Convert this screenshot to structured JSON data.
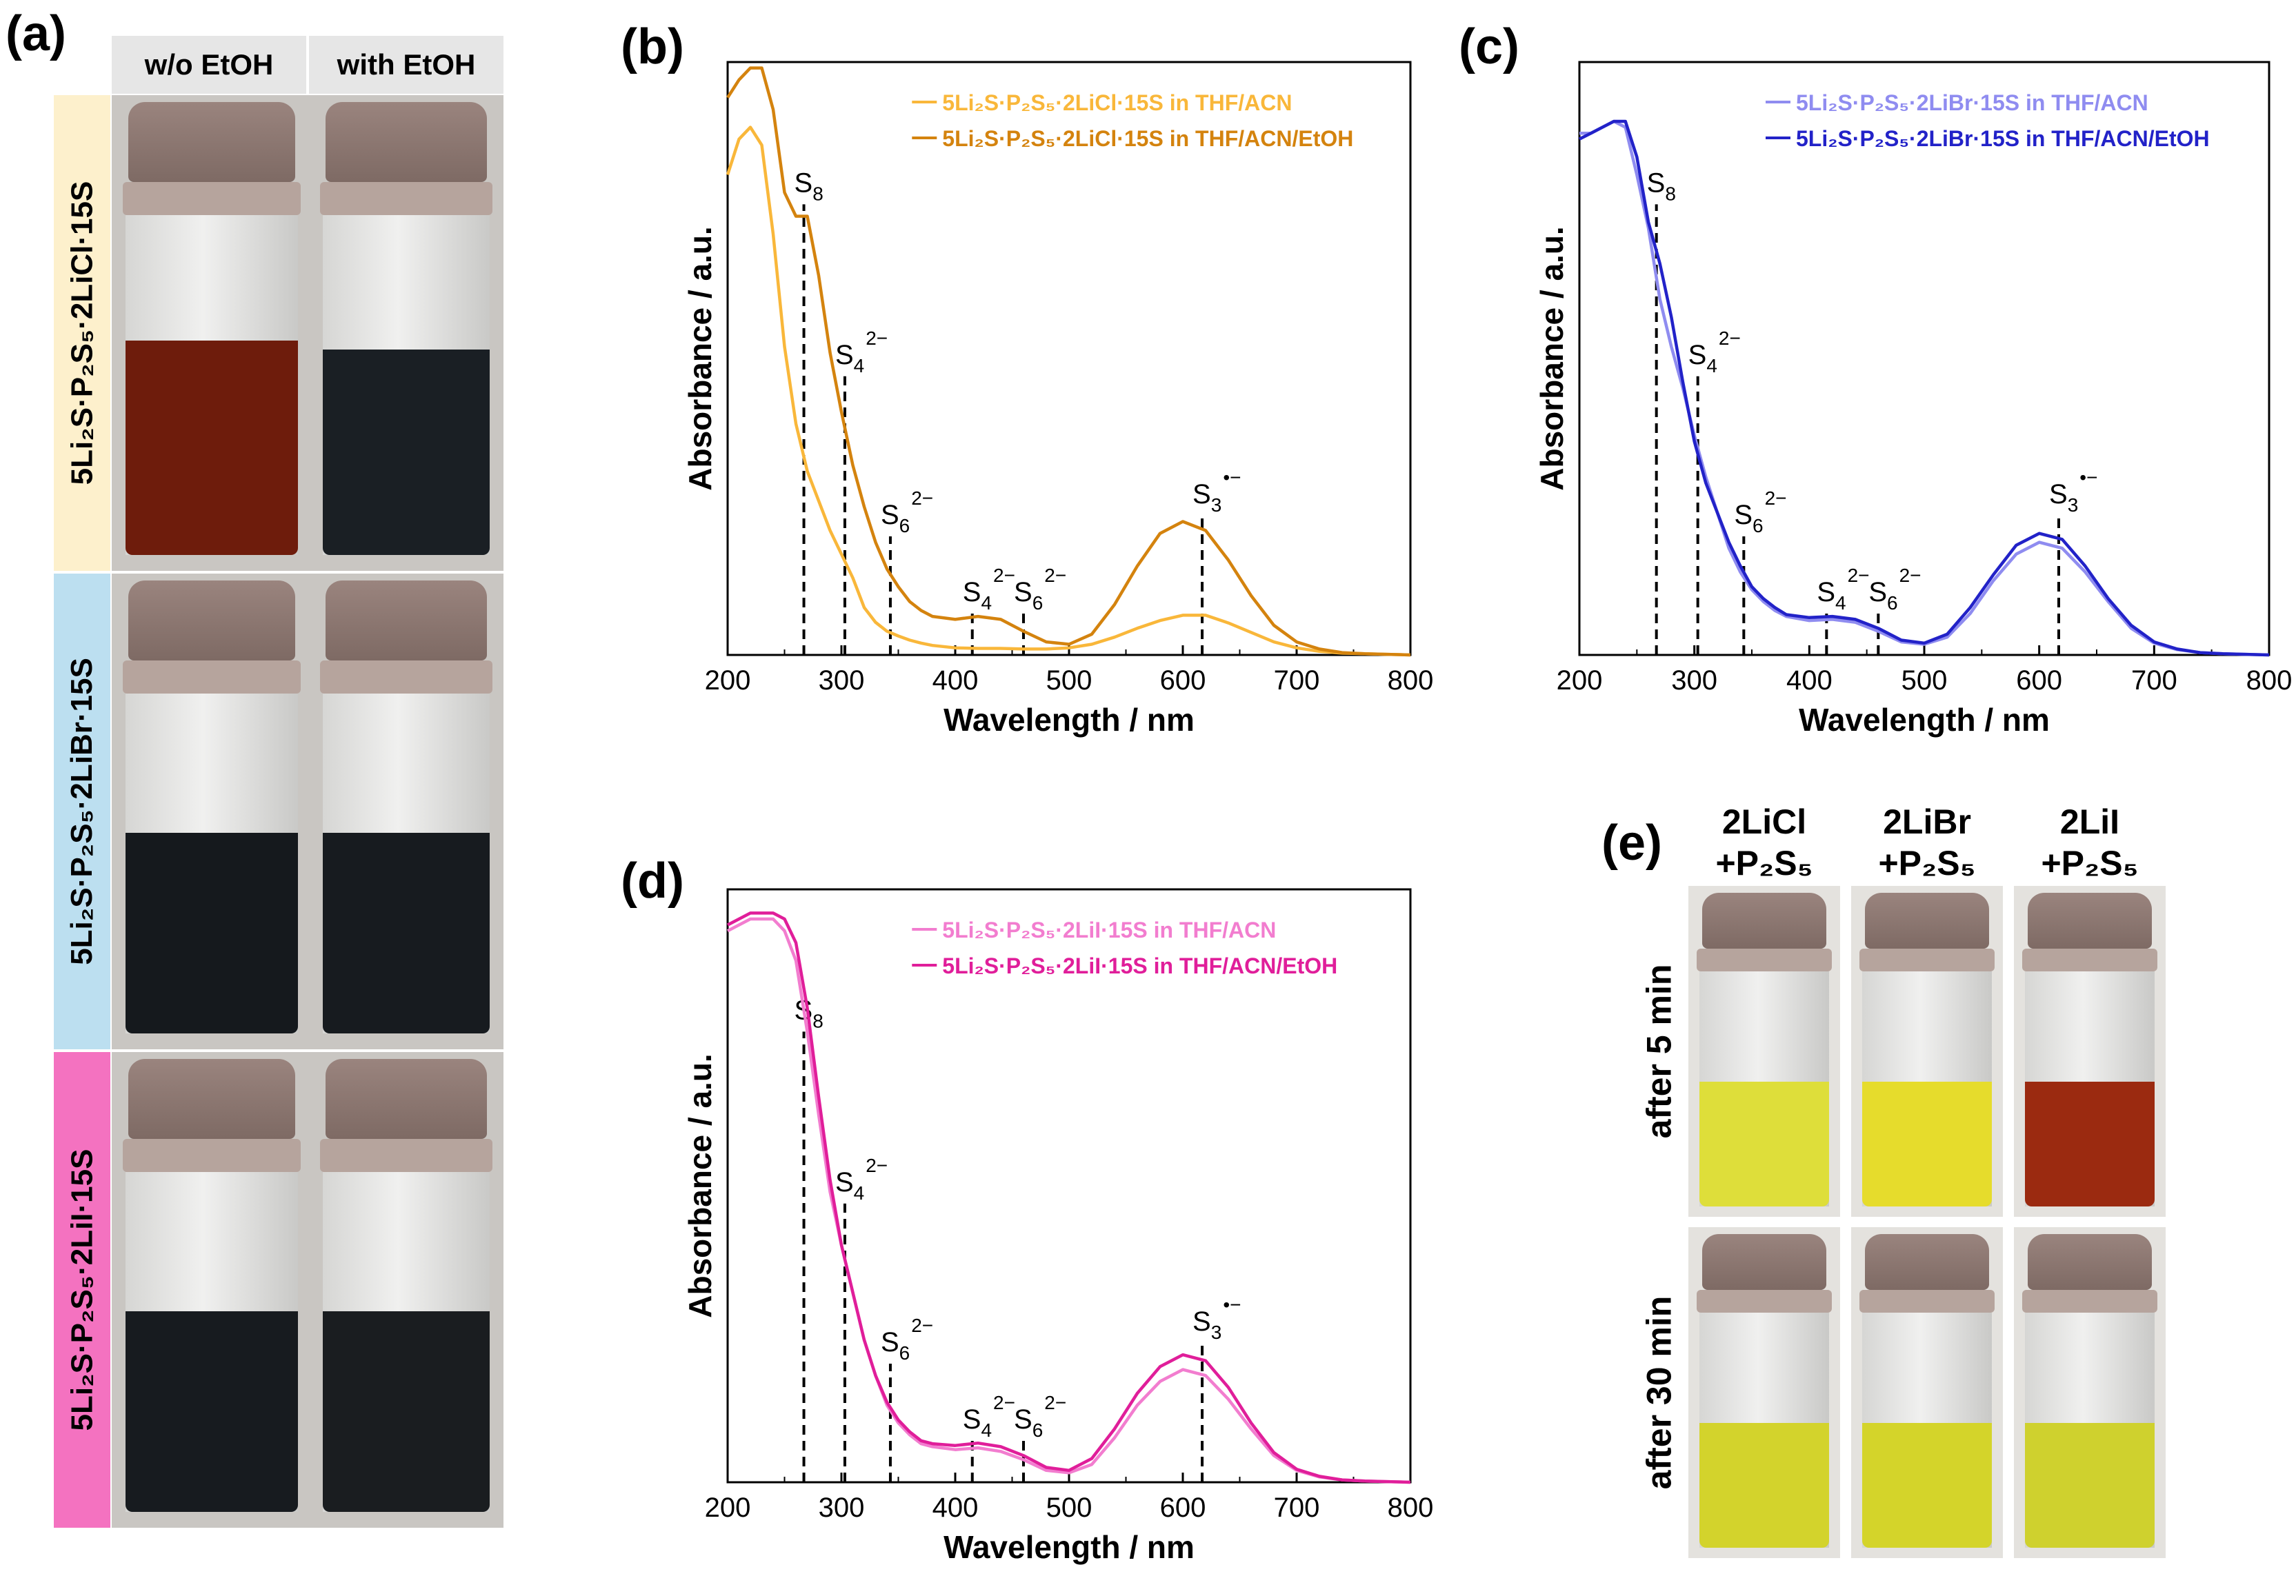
{
  "panel_a": {
    "letter": "(a)",
    "col_headers": [
      "w/o EtOH",
      "with EtOH"
    ],
    "row_labels": [
      "5Li₂S·P₂S₅·2LiCl·15S",
      "5Li₂S·P₂S₅·2LiBr·15S",
      "5Li₂S·P₂S₅·2LiI·15S"
    ],
    "row_colors": [
      "#fdf0cc",
      "#bcdff0",
      "#f472c0"
    ],
    "liquid_colors": [
      [
        "#6e1c0c",
        "#1a1f24"
      ],
      [
        "#15191d",
        "#171b1f"
      ],
      [
        "#171b1f",
        "#1a1d20"
      ]
    ]
  },
  "panel_e": {
    "letter": "(e)",
    "col_headers": [
      [
        "2LiCl",
        "+P₂S₅"
      ],
      [
        "2LiBr",
        "+P₂S₅"
      ],
      [
        "2LiI",
        "+P₂S₅"
      ]
    ],
    "row_labels": [
      "after 5 min",
      "after 30 min"
    ],
    "liquid_colors": [
      [
        "#dede3a",
        "#e6dc2c",
        "#9b2a10"
      ],
      [
        "#d3d32c",
        "#d4d42a",
        "#cfd12e"
      ]
    ]
  },
  "chart_data": [
    {
      "panel": "(b)",
      "type": "line",
      "xlabel": "Wavelength / nm",
      "ylabel": "Absorbance / a.u.",
      "xlim": [
        200,
        800
      ],
      "ylim": [
        0,
        1
      ],
      "xticks": [
        200,
        300,
        400,
        500,
        600,
        700,
        800
      ],
      "legend_position": "top-right",
      "series": [
        {
          "name": "5Li₂S·P₂S₅·2LiCl·15S in THF/ACN",
          "color": "#f9b73a",
          "x": [
            200,
            210,
            220,
            230,
            240,
            250,
            260,
            270,
            280,
            290,
            300,
            310,
            320,
            330,
            340,
            350,
            360,
            370,
            380,
            400,
            420,
            440,
            460,
            480,
            500,
            520,
            540,
            560,
            580,
            600,
            620,
            640,
            660,
            680,
            700,
            720,
            740,
            760,
            780,
            800
          ],
          "y": [
            0.81,
            0.87,
            0.89,
            0.86,
            0.71,
            0.52,
            0.39,
            0.31,
            0.26,
            0.21,
            0.17,
            0.13,
            0.08,
            0.055,
            0.04,
            0.032,
            0.025,
            0.02,
            0.016,
            0.012,
            0.011,
            0.011,
            0.01,
            0.01,
            0.012,
            0.018,
            0.03,
            0.045,
            0.058,
            0.067,
            0.067,
            0.054,
            0.038,
            0.022,
            0.012,
            0.006,
            0.003,
            0.002,
            0.001,
            0
          ]
        },
        {
          "name": "5Li₂S·P₂S₅·2LiCl·15S in THF/ACN/EtOH",
          "color": "#d4830e",
          "x": [
            200,
            210,
            220,
            230,
            240,
            250,
            260,
            270,
            280,
            290,
            300,
            310,
            320,
            330,
            340,
            350,
            360,
            370,
            380,
            400,
            420,
            440,
            460,
            480,
            500,
            520,
            540,
            560,
            580,
            600,
            620,
            640,
            660,
            680,
            700,
            720,
            740,
            760,
            780,
            800
          ],
          "y": [
            0.94,
            0.97,
            0.99,
            0.99,
            0.92,
            0.78,
            0.74,
            0.74,
            0.64,
            0.51,
            0.41,
            0.32,
            0.25,
            0.19,
            0.145,
            0.115,
            0.09,
            0.075,
            0.065,
            0.06,
            0.065,
            0.06,
            0.04,
            0.022,
            0.018,
            0.035,
            0.085,
            0.15,
            0.205,
            0.225,
            0.21,
            0.16,
            0.1,
            0.05,
            0.022,
            0.01,
            0.004,
            0.002,
            0.001,
            0
          ]
        }
      ],
      "markers": [
        {
          "x": 267,
          "label": "S8",
          "sup": "",
          "top": 0.76
        },
        {
          "x": 303,
          "label": "S4",
          "sup": "2−",
          "top": 0.47
        },
        {
          "x": 343,
          "label": "S6",
          "sup": "2−",
          "top": 0.2
        },
        {
          "x": 415,
          "label": "S4",
          "sup": "2−",
          "top": 0.07
        },
        {
          "x": 460,
          "label": "S6",
          "sup": "2−",
          "top": 0.07
        },
        {
          "x": 617,
          "label": "S3",
          "sup": "•−",
          "top": 0.235
        }
      ]
    },
    {
      "panel": "(c)",
      "type": "line",
      "xlabel": "Wavelength / nm",
      "ylabel": "Absorbance / a.u.",
      "xlim": [
        200,
        800
      ],
      "ylim": [
        0,
        1
      ],
      "xticks": [
        200,
        300,
        400,
        500,
        600,
        700,
        800
      ],
      "legend_position": "top-right",
      "series": [
        {
          "name": "5Li₂S·P₂S₅·2LiBr·15S in THF/ACN",
          "color": "#8f8cf0",
          "x": [
            200,
            210,
            220,
            230,
            240,
            250,
            260,
            270,
            280,
            290,
            300,
            310,
            320,
            330,
            340,
            350,
            360,
            370,
            380,
            400,
            420,
            440,
            460,
            480,
            500,
            520,
            540,
            560,
            580,
            600,
            620,
            640,
            660,
            680,
            700,
            720,
            740,
            760,
            780,
            800
          ],
          "y": [
            0.88,
            0.88,
            0.89,
            0.9,
            0.89,
            0.81,
            0.72,
            0.6,
            0.52,
            0.45,
            0.37,
            0.3,
            0.24,
            0.18,
            0.14,
            0.11,
            0.09,
            0.075,
            0.065,
            0.058,
            0.06,
            0.055,
            0.04,
            0.022,
            0.018,
            0.03,
            0.07,
            0.125,
            0.17,
            0.19,
            0.18,
            0.14,
            0.09,
            0.045,
            0.02,
            0.009,
            0.004,
            0.002,
            0.001,
            0
          ]
        },
        {
          "name": "5Li₂S·P₂S₅·2LiBr·15S in THF/ACN/EtOH",
          "color": "#2222c8",
          "x": [
            200,
            210,
            220,
            230,
            240,
            250,
            260,
            270,
            280,
            290,
            300,
            310,
            320,
            330,
            340,
            350,
            360,
            370,
            380,
            400,
            420,
            440,
            460,
            480,
            500,
            520,
            540,
            560,
            580,
            600,
            620,
            640,
            660,
            680,
            700,
            720,
            740,
            760,
            780,
            800
          ],
          "y": [
            0.87,
            0.88,
            0.89,
            0.9,
            0.9,
            0.84,
            0.73,
            0.66,
            0.57,
            0.46,
            0.36,
            0.29,
            0.24,
            0.19,
            0.15,
            0.115,
            0.095,
            0.08,
            0.068,
            0.063,
            0.065,
            0.06,
            0.045,
            0.025,
            0.02,
            0.035,
            0.08,
            0.135,
            0.185,
            0.205,
            0.195,
            0.15,
            0.095,
            0.05,
            0.022,
            0.01,
            0.004,
            0.002,
            0.001,
            0
          ]
        }
      ],
      "markers": [
        {
          "x": 267,
          "label": "S8",
          "sup": "",
          "top": 0.76
        },
        {
          "x": 303,
          "label": "S4",
          "sup": "2−",
          "top": 0.47
        },
        {
          "x": 343,
          "label": "S6",
          "sup": "2−",
          "top": 0.2
        },
        {
          "x": 415,
          "label": "S4",
          "sup": "2−",
          "top": 0.07
        },
        {
          "x": 460,
          "label": "S6",
          "sup": "2−",
          "top": 0.07
        },
        {
          "x": 617,
          "label": "S3",
          "sup": "•−",
          "top": 0.235
        }
      ]
    },
    {
      "panel": "(d)",
      "type": "line",
      "xlabel": "Wavelength / nm",
      "ylabel": "Absorbance / a.u.",
      "xlim": [
        200,
        800
      ],
      "ylim": [
        0,
        1
      ],
      "xticks": [
        200,
        300,
        400,
        500,
        600,
        700,
        800
      ],
      "legend_position": "top-right",
      "series": [
        {
          "name": "5Li₂S·P₂S₅·2LiI·15S in THF/ACN",
          "color": "#f27dcf",
          "x": [
            200,
            210,
            220,
            230,
            240,
            250,
            260,
            270,
            280,
            290,
            300,
            310,
            320,
            330,
            340,
            350,
            360,
            370,
            380,
            400,
            420,
            440,
            460,
            480,
            500,
            520,
            540,
            560,
            580,
            600,
            620,
            640,
            660,
            680,
            700,
            720,
            740,
            760,
            780,
            800
          ],
          "y": [
            0.93,
            0.94,
            0.95,
            0.95,
            0.95,
            0.93,
            0.88,
            0.76,
            0.62,
            0.49,
            0.4,
            0.32,
            0.24,
            0.18,
            0.13,
            0.1,
            0.08,
            0.065,
            0.06,
            0.055,
            0.058,
            0.052,
            0.038,
            0.02,
            0.016,
            0.03,
            0.075,
            0.13,
            0.17,
            0.19,
            0.18,
            0.14,
            0.09,
            0.045,
            0.02,
            0.009,
            0.004,
            0.002,
            0.001,
            0
          ]
        },
        {
          "name": "5Li₂S·P₂S₅·2LiI·15S in THF/ACN/EtOH",
          "color": "#e01e9a",
          "x": [
            200,
            210,
            220,
            230,
            240,
            250,
            260,
            270,
            280,
            290,
            300,
            310,
            320,
            330,
            340,
            350,
            360,
            370,
            380,
            400,
            420,
            440,
            460,
            480,
            500,
            520,
            540,
            560,
            580,
            600,
            620,
            640,
            660,
            680,
            700,
            720,
            740,
            760,
            780,
            800
          ],
          "y": [
            0.94,
            0.95,
            0.96,
            0.96,
            0.96,
            0.95,
            0.91,
            0.8,
            0.65,
            0.51,
            0.4,
            0.32,
            0.24,
            0.18,
            0.135,
            0.105,
            0.085,
            0.07,
            0.065,
            0.062,
            0.066,
            0.06,
            0.045,
            0.025,
            0.02,
            0.04,
            0.09,
            0.15,
            0.195,
            0.215,
            0.205,
            0.16,
            0.1,
            0.05,
            0.022,
            0.01,
            0.004,
            0.002,
            0.001,
            0
          ]
        }
      ],
      "markers": [
        {
          "x": 267,
          "label": "S8",
          "sup": "",
          "top": 0.76
        },
        {
          "x": 303,
          "label": "S4",
          "sup": "2−",
          "top": 0.47
        },
        {
          "x": 343,
          "label": "S6",
          "sup": "2−",
          "top": 0.2
        },
        {
          "x": 415,
          "label": "S4",
          "sup": "2−",
          "top": 0.07
        },
        {
          "x": 460,
          "label": "S6",
          "sup": "2−",
          "top": 0.07
        },
        {
          "x": 617,
          "label": "S3",
          "sup": "•−",
          "top": 0.235
        }
      ]
    }
  ]
}
